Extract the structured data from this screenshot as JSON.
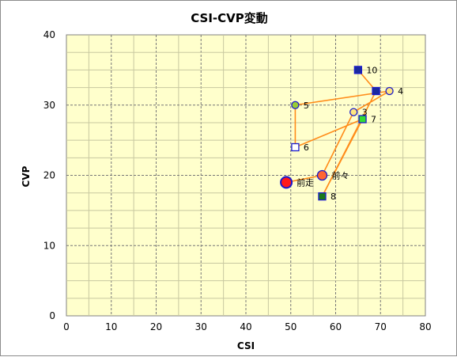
{
  "chart_data": {
    "type": "scatter",
    "title": "CSI-CVP変動",
    "xlabel": "CSI",
    "ylabel": "CVP",
    "xlim": [
      0,
      80
    ],
    "ylim": [
      0,
      40
    ],
    "xticks": [
      "0",
      "10",
      "20",
      "30",
      "40",
      "50",
      "60",
      "70",
      "80"
    ],
    "yticks": [
      "0",
      "10",
      "20",
      "30",
      "40"
    ],
    "grid": true,
    "plot_background": "#ffffcc",
    "line_color": "#ff8c1a",
    "points": [
      {
        "label": "前走",
        "x": 49,
        "y": 19,
        "marker": "circle",
        "size": "large",
        "fill": "#ff1a1a",
        "stroke": "#1a1acc"
      },
      {
        "label": "前々",
        "x": 57,
        "y": 20,
        "marker": "circle",
        "size": "medium",
        "fill": "#ff6633",
        "stroke": "#1a1acc"
      },
      {
        "label": "3",
        "x": 64,
        "y": 29,
        "marker": "circle",
        "size": "small",
        "fill": "#ffe680",
        "stroke": "#1a1acc"
      },
      {
        "label": "4",
        "x": 72,
        "y": 32,
        "marker": "circle",
        "size": "small",
        "fill": "#ffe680",
        "stroke": "#1a1acc"
      },
      {
        "label": "5",
        "x": 51,
        "y": 30,
        "marker": "circle",
        "size": "small",
        "fill": "#99cc33",
        "stroke": "#1a1acc"
      },
      {
        "label": "6",
        "x": 51,
        "y": 24,
        "marker": "square",
        "size": "small",
        "fill": "#ffffff",
        "stroke": "#1a1acc"
      },
      {
        "label": "7",
        "x": 66,
        "y": 28,
        "marker": "square",
        "size": "small",
        "fill": "#33dd33",
        "stroke": "#1a1acc"
      },
      {
        "label": "8",
        "x": 57,
        "y": 17,
        "marker": "square",
        "size": "small",
        "fill": "#1a7a1a",
        "stroke": "#1a1acc"
      },
      {
        "label": "",
        "x": 69,
        "y": 32,
        "marker": "square",
        "size": "small",
        "fill": "#1a2aa0",
        "stroke": "#1a1acc"
      },
      {
        "label": "10",
        "x": 65,
        "y": 35,
        "marker": "square",
        "size": "small",
        "fill": "#1a2aa0",
        "stroke": "#1a1acc"
      }
    ]
  }
}
